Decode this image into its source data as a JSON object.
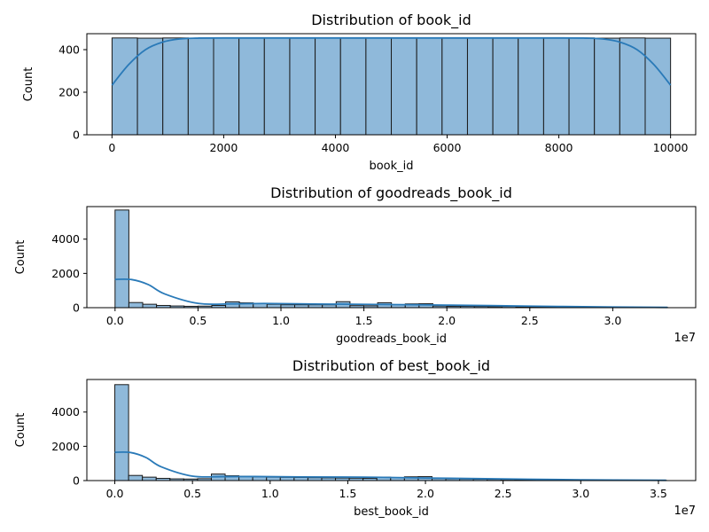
{
  "colors": {
    "bar_fill": "#8fb9da",
    "bar_edge": "#1a1a1a",
    "kde_line": "#2a7ab8",
    "axes": "#000000"
  },
  "chart_data": [
    {
      "type": "bar",
      "subtype": "histogram_with_kde",
      "title": "Distribution of book_id",
      "xlabel": "book_id",
      "ylabel": "Count",
      "x_offset_label": "",
      "xlim": [
        -450,
        10450
      ],
      "ylim": [
        0,
        475
      ],
      "xticks": [
        0,
        2000,
        4000,
        6000,
        8000,
        10000
      ],
      "xtick_labels": [
        "0",
        "2000",
        "4000",
        "6000",
        "8000",
        "10000"
      ],
      "yticks": [
        0,
        200,
        400
      ],
      "ytick_labels": [
        "0",
        "200",
        "400"
      ],
      "bins": {
        "start": 1,
        "width": 454.5,
        "counts": [
          455,
          454,
          455,
          454,
          455,
          454,
          455,
          454,
          455,
          454,
          455,
          454,
          455,
          454,
          455,
          454,
          455,
          454,
          455,
          454,
          455,
          454
        ]
      },
      "kde": {
        "x": [
          0,
          300,
          600,
          900,
          1200,
          1500,
          2000,
          5000,
          8000,
          8500,
          8800,
          9100,
          9400,
          9700,
          10000
        ],
        "y": [
          233,
          330,
          400,
          435,
          450,
          454,
          455,
          455,
          455,
          454,
          450,
          435,
          400,
          330,
          233
        ]
      }
    },
    {
      "type": "bar",
      "subtype": "histogram_with_kde",
      "title": "Distribution of goodreads_book_id",
      "xlabel": "goodreads_book_id",
      "ylabel": "Count",
      "x_offset_label": "1e7",
      "xlim": [
        -0.17,
        3.5
      ],
      "ylim": [
        0,
        5900
      ],
      "xticks": [
        0.0,
        0.5,
        1.0,
        1.5,
        2.0,
        2.5,
        3.0
      ],
      "xtick_labels": [
        "0.0",
        "0.5",
        "1.0",
        "1.5",
        "2.0",
        "2.5",
        "3.0"
      ],
      "yticks": [
        0,
        2000,
        4000
      ],
      "ytick_labels": [
        "0",
        "2000",
        "4000"
      ],
      "bins": {
        "start": 0.0,
        "width": 0.0833,
        "counts": [
          5700,
          300,
          200,
          130,
          100,
          80,
          90,
          130,
          340,
          280,
          250,
          200,
          170,
          170,
          170,
          170,
          350,
          120,
          110,
          290,
          180,
          220,
          230,
          100,
          80,
          80,
          70,
          60,
          70,
          50,
          50,
          40,
          40,
          30,
          30,
          20,
          20,
          15,
          10,
          10
        ]
      },
      "kde": {
        "x": [
          0.0,
          0.1,
          0.2,
          0.3,
          0.5,
          0.7,
          0.9,
          1.2,
          1.5,
          2.0,
          2.5,
          3.0,
          3.33
        ],
        "y": [
          1650,
          1640,
          1350,
          800,
          250,
          220,
          245,
          215,
          195,
          150,
          90,
          40,
          15
        ]
      }
    },
    {
      "type": "bar",
      "subtype": "histogram_with_kde",
      "title": "Distribution of best_book_id",
      "xlabel": "best_book_id",
      "ylabel": "Count",
      "x_offset_label": "1e7",
      "xlim": [
        -0.18,
        3.74
      ],
      "ylim": [
        0,
        5900
      ],
      "xticks": [
        0.0,
        0.5,
        1.0,
        1.5,
        2.0,
        2.5,
        3.0,
        3.5
      ],
      "xtick_labels": [
        "0.0",
        "0.5",
        "1.0",
        "1.5",
        "2.0",
        "2.5",
        "3.0",
        "3.5"
      ],
      "yticks": [
        0,
        2000,
        4000
      ],
      "ytick_labels": [
        "0",
        "2000",
        "4000"
      ],
      "bins": {
        "start": 0.0,
        "width": 0.0888,
        "counts": [
          5600,
          300,
          200,
          130,
          100,
          90,
          110,
          380,
          280,
          250,
          220,
          200,
          190,
          180,
          170,
          160,
          150,
          140,
          130,
          200,
          180,
          220,
          230,
          120,
          100,
          90,
          80,
          70,
          60,
          50,
          45,
          40,
          35,
          30,
          25,
          20,
          18,
          15,
          12,
          10
        ]
      },
      "kde": {
        "x": [
          0.0,
          0.1,
          0.2,
          0.3,
          0.5,
          0.7,
          0.9,
          1.2,
          1.6,
          2.0,
          2.5,
          3.0,
          3.55
        ],
        "y": [
          1650,
          1640,
          1350,
          800,
          260,
          230,
          235,
          215,
          200,
          150,
          95,
          45,
          15
        ]
      }
    }
  ]
}
